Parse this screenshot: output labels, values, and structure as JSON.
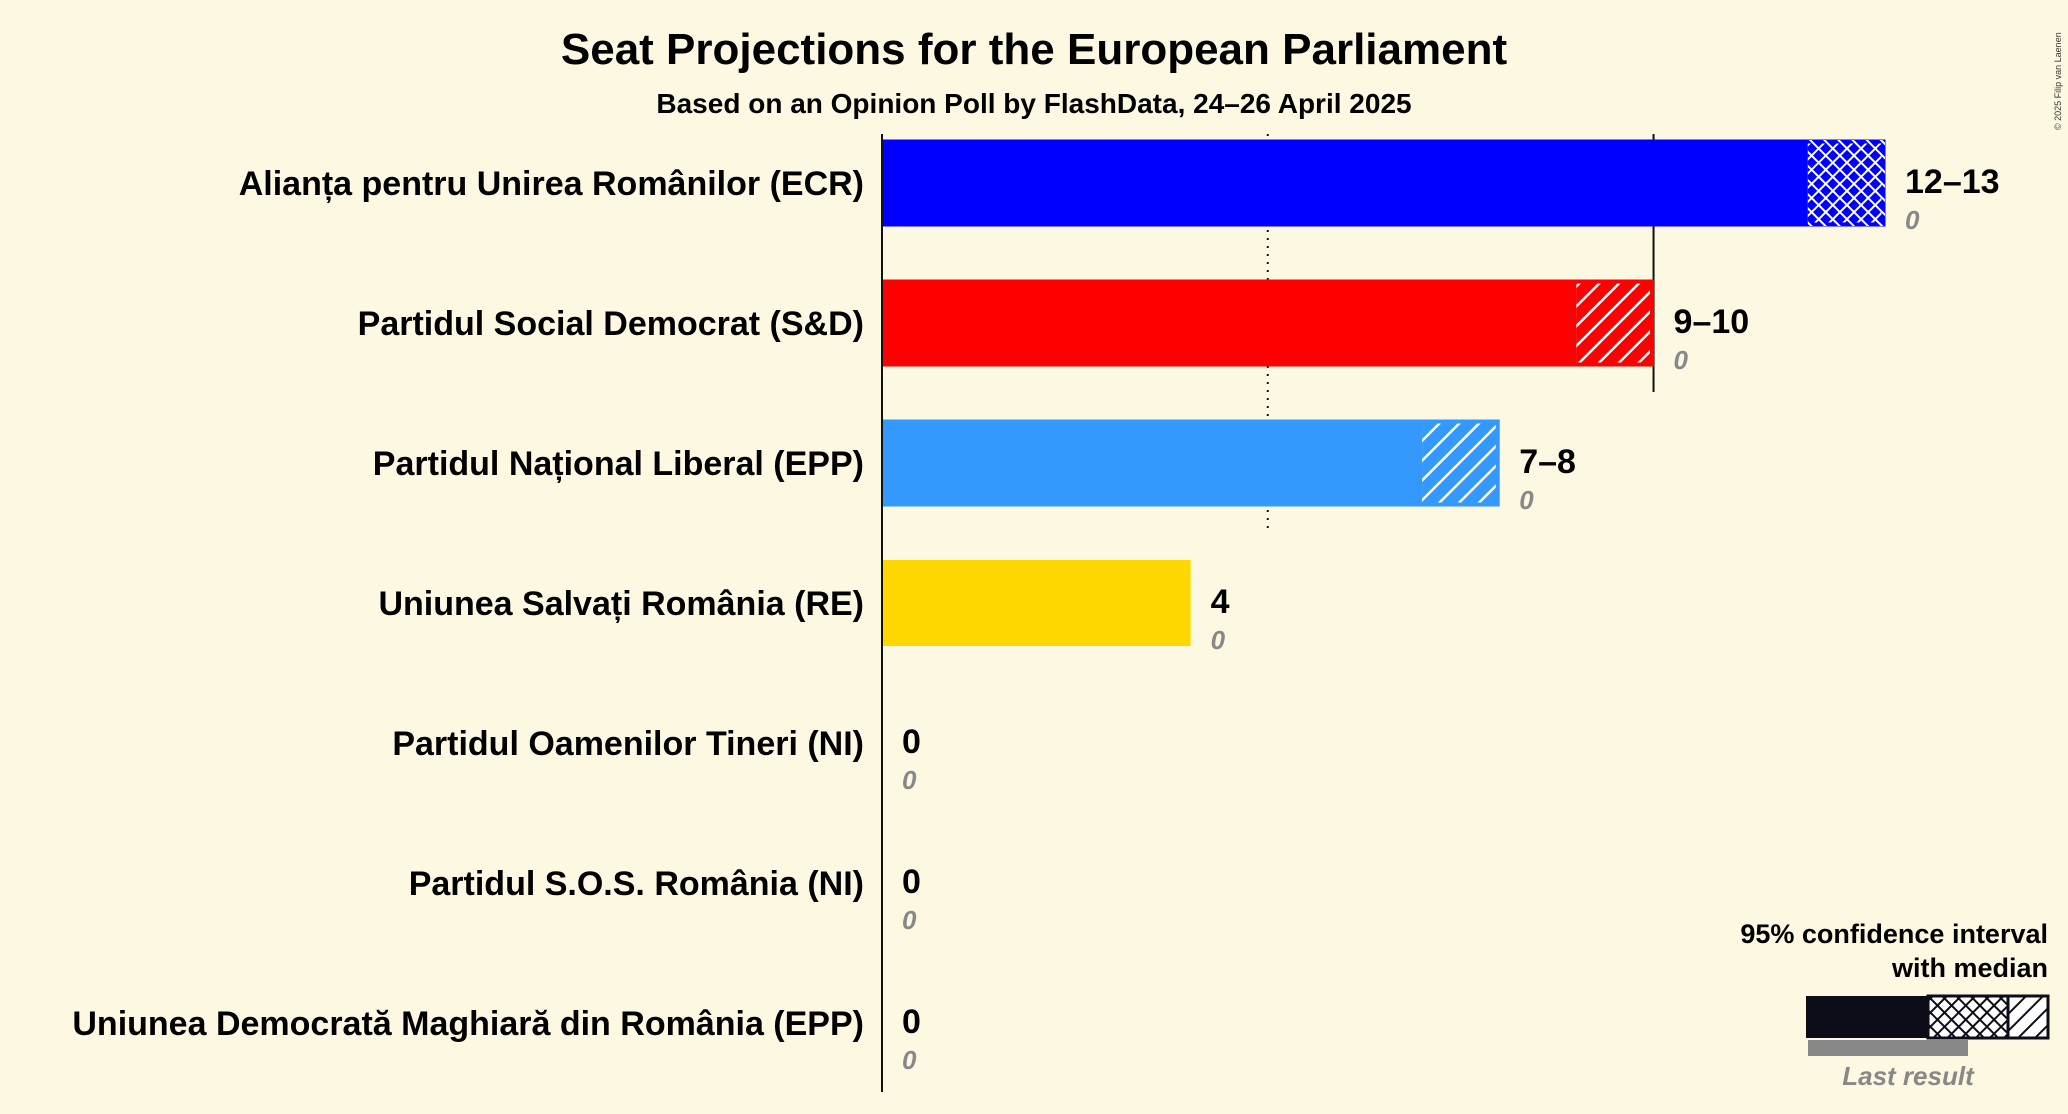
{
  "chart_data": {
    "type": "bar",
    "title": "Seat Projections for the European Parliament",
    "subtitle": "Based on an Opinion Poll by FlashData, 24–26 April 2025",
    "xlim": [
      0,
      13
    ],
    "majority_lines": [
      5,
      10
    ],
    "series": [
      {
        "name": "Alianța pentru Unirea Românilor (ECR)",
        "color": "#0000ff",
        "low": 12,
        "median": 12,
        "high": 13,
        "range_label": "12–13",
        "last_result": 0,
        "last_label": "0"
      },
      {
        "name": "Partidul Social Democrat (S&D)",
        "color": "#ff0000",
        "low": 9,
        "median": 9,
        "high": 10,
        "range_label": "9–10",
        "last_result": 0,
        "last_label": "0"
      },
      {
        "name": "Partidul Național Liberal (EPP)",
        "color": "#3399ff",
        "low": 7,
        "median": 7,
        "high": 8,
        "range_label": "7–8",
        "last_result": 0,
        "last_label": "0"
      },
      {
        "name": "Uniunea Salvați România (RE)",
        "color": "#ffd700",
        "low": 4,
        "median": 4,
        "high": 4,
        "range_label": "4",
        "last_result": 0,
        "last_label": "0"
      },
      {
        "name": "Partidul Oamenilor Tineri (NI)",
        "color": "#888888",
        "low": 0,
        "median": 0,
        "high": 0,
        "range_label": "0",
        "last_result": 0,
        "last_label": "0"
      },
      {
        "name": "Partidul S.O.S. România (NI)",
        "color": "#888888",
        "low": 0,
        "median": 0,
        "high": 0,
        "range_label": "0",
        "last_result": 0,
        "last_label": "0"
      },
      {
        "name": "Uniunea Democrată Maghiară din România (EPP)",
        "color": "#888888",
        "low": 0,
        "median": 0,
        "high": 0,
        "range_label": "0",
        "last_result": 0,
        "last_label": "0"
      }
    ]
  },
  "legend": {
    "line1": "95% confidence interval",
    "line2": "with median",
    "last_result": "Last result"
  },
  "copyright": "© 2025 Filip van Laenen"
}
